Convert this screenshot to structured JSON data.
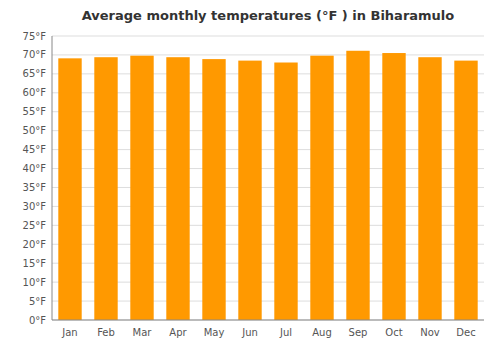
{
  "chart_data": {
    "type": "bar",
    "title": "Average monthly temperatures (°F ) in Biharamulo",
    "categories": [
      "Jan",
      "Feb",
      "Mar",
      "Apr",
      "May",
      "Jun",
      "Jul",
      "Aug",
      "Sep",
      "Oct",
      "Nov",
      "Dec"
    ],
    "values": [
      69.1,
      69.4,
      69.8,
      69.4,
      68.9,
      68.5,
      68.0,
      69.8,
      71.1,
      70.5,
      69.4,
      68.5
    ],
    "color": "#FF9900",
    "ylim": [
      0,
      75
    ],
    "yticks": [
      {
        "value": 0,
        "label": "0°F"
      },
      {
        "value": 5,
        "label": "5°F"
      },
      {
        "value": 10,
        "label": "10°F"
      },
      {
        "value": 15,
        "label": "15°F"
      },
      {
        "value": 20,
        "label": "20°F"
      },
      {
        "value": 25,
        "label": "25°F"
      },
      {
        "value": 30,
        "label": "30°F"
      },
      {
        "value": 35,
        "label": "35°F"
      },
      {
        "value": 40,
        "label": "40°F"
      },
      {
        "value": 45,
        "label": "45°F"
      },
      {
        "value": 50,
        "label": "50°F"
      },
      {
        "value": 55,
        "label": "55°F"
      },
      {
        "value": 60,
        "label": "60°F"
      },
      {
        "value": 65,
        "label": "65°F"
      },
      {
        "value": 70,
        "label": "70°F"
      },
      {
        "value": 75,
        "label": "75°F"
      }
    ],
    "grid": true
  }
}
